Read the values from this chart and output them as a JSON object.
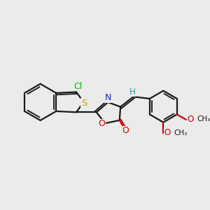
{
  "bg_color": "#ebebeb",
  "bond_color": "#1a1a1a",
  "bond_width": 1.6,
  "atom_colors": {
    "Cl": "#00bb00",
    "S": "#ccaa00",
    "N": "#2222cc",
    "O": "#cc0000",
    "H": "#339999"
  },
  "figsize": [
    3.0,
    3.0
  ],
  "dpi": 100
}
